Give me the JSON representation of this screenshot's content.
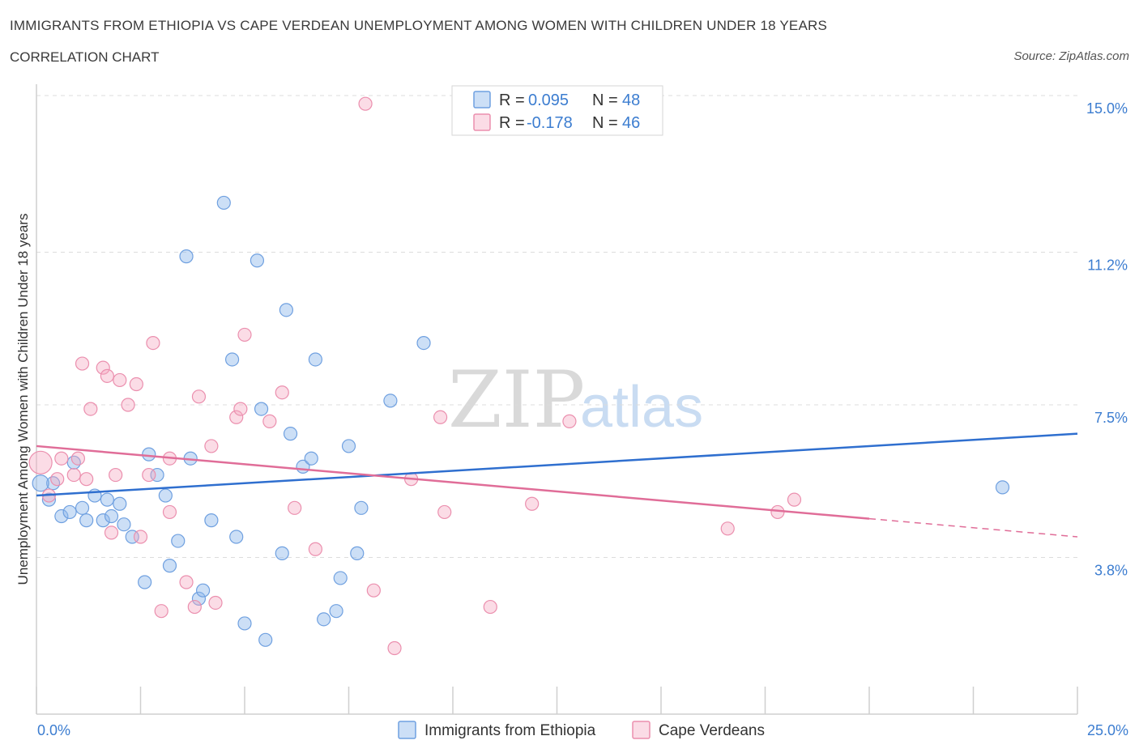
{
  "title": "IMMIGRANTS FROM ETHIOPIA VS CAPE VERDEAN UNEMPLOYMENT AMONG WOMEN WITH CHILDREN UNDER 18 YEARS",
  "subtitle": "CORRELATION CHART",
  "source": "Source: ZipAtlas.com",
  "watermark": {
    "zip": "ZIP",
    "atlas": "atlas"
  },
  "legend": {
    "r_label": "R =",
    "n_label": "N =",
    "rows": [
      {
        "r": "0.095",
        "n": "48",
        "color": "#8fb8ec"
      },
      {
        "r": "-0.178",
        "n": "46",
        "color": "#f4a7c0"
      }
    ]
  },
  "bottom_legend": [
    "Immigrants from Ethiopia",
    "Cape Verdeans"
  ],
  "chart_data": {
    "type": "scatter",
    "title": "",
    "xlabel": "",
    "ylabel": "Unemployment Among Women with Children Under 18 years",
    "xlim": [
      0,
      25
    ],
    "ylim": [
      0,
      15
    ],
    "x_tick_labels": [
      {
        "value": 0,
        "label": "0.0%"
      },
      {
        "value": 25,
        "label": "25.0%"
      }
    ],
    "y_tick_labels": [
      {
        "value": 3.8,
        "label": "3.8%"
      },
      {
        "value": 7.5,
        "label": "7.5%"
      },
      {
        "value": 11.2,
        "label": "11.2%"
      },
      {
        "value": 15.0,
        "label": "15.0%"
      }
    ],
    "grid": true,
    "legend_position": "top-center",
    "series": [
      {
        "name": "Immigrants from Ethiopia",
        "color": "#8fb8ec",
        "line_color": "#2f6fcf",
        "trend": [
          [
            0,
            5.3
          ],
          [
            25,
            6.8
          ]
        ],
        "trend_dashed_from": null,
        "points": [
          [
            0.3,
            5.2
          ],
          [
            0.4,
            5.6
          ],
          [
            0.6,
            4.8
          ],
          [
            0.8,
            4.9
          ],
          [
            0.9,
            6.1
          ],
          [
            1.1,
            5.0
          ],
          [
            1.2,
            4.7
          ],
          [
            1.4,
            5.3
          ],
          [
            1.6,
            4.7
          ],
          [
            1.7,
            5.2
          ],
          [
            1.8,
            4.8
          ],
          [
            2.0,
            5.1
          ],
          [
            2.1,
            4.6
          ],
          [
            2.3,
            4.3
          ],
          [
            2.6,
            3.2
          ],
          [
            2.7,
            6.3
          ],
          [
            2.9,
            5.8
          ],
          [
            3.1,
            5.3
          ],
          [
            3.2,
            3.6
          ],
          [
            3.4,
            4.2
          ],
          [
            3.6,
            11.1
          ],
          [
            3.7,
            6.2
          ],
          [
            3.9,
            2.8
          ],
          [
            4.0,
            3.0
          ],
          [
            4.2,
            4.7
          ],
          [
            4.5,
            12.4
          ],
          [
            4.7,
            8.6
          ],
          [
            4.8,
            4.3
          ],
          [
            5.0,
            2.2
          ],
          [
            5.3,
            11.0
          ],
          [
            5.4,
            7.4
          ],
          [
            5.5,
            1.8
          ],
          [
            5.9,
            3.9
          ],
          [
            6.0,
            9.8
          ],
          [
            6.1,
            6.8
          ],
          [
            6.4,
            6.0
          ],
          [
            6.6,
            6.2
          ],
          [
            6.7,
            8.6
          ],
          [
            6.9,
            2.3
          ],
          [
            7.2,
            2.5
          ],
          [
            7.3,
            3.3
          ],
          [
            7.5,
            6.5
          ],
          [
            7.7,
            3.9
          ],
          [
            7.8,
            5.0
          ],
          [
            8.5,
            7.6
          ],
          [
            9.3,
            9.0
          ],
          [
            23.2,
            5.5
          ],
          [
            0.1,
            5.6
          ]
        ]
      },
      {
        "name": "Cape Verdeans",
        "color": "#f4a7c0",
        "line_color": "#e06d98",
        "trend": [
          [
            0,
            6.5
          ],
          [
            25,
            4.3
          ]
        ],
        "trend_dashed_from": 20,
        "points": [
          [
            0.1,
            6.1
          ],
          [
            0.3,
            5.3
          ],
          [
            0.5,
            5.7
          ],
          [
            0.6,
            6.2
          ],
          [
            0.9,
            5.8
          ],
          [
            1.0,
            6.2
          ],
          [
            1.1,
            8.5
          ],
          [
            1.2,
            5.7
          ],
          [
            1.3,
            7.4
          ],
          [
            1.6,
            8.4
          ],
          [
            1.7,
            8.2
          ],
          [
            1.8,
            4.4
          ],
          [
            1.9,
            5.8
          ],
          [
            2.0,
            8.1
          ],
          [
            2.2,
            7.5
          ],
          [
            2.4,
            8.0
          ],
          [
            2.5,
            4.3
          ],
          [
            2.7,
            5.8
          ],
          [
            2.8,
            9.0
          ],
          [
            3.0,
            2.5
          ],
          [
            3.2,
            4.9
          ],
          [
            3.2,
            6.2
          ],
          [
            3.6,
            3.2
          ],
          [
            3.8,
            2.6
          ],
          [
            3.9,
            7.7
          ],
          [
            4.2,
            6.5
          ],
          [
            4.3,
            2.7
          ],
          [
            4.8,
            7.2
          ],
          [
            4.9,
            7.4
          ],
          [
            5.0,
            9.2
          ],
          [
            5.6,
            7.1
          ],
          [
            5.9,
            7.8
          ],
          [
            6.2,
            5.0
          ],
          [
            6.7,
            4.0
          ],
          [
            7.9,
            14.8
          ],
          [
            8.1,
            3.0
          ],
          [
            8.6,
            1.6
          ],
          [
            9.0,
            5.7
          ],
          [
            9.7,
            7.2
          ],
          [
            9.8,
            4.9
          ],
          [
            10.9,
            2.6
          ],
          [
            11.9,
            5.1
          ],
          [
            12.8,
            7.1
          ],
          [
            16.6,
            4.5
          ],
          [
            17.8,
            4.9
          ],
          [
            18.2,
            5.2
          ]
        ]
      }
    ]
  }
}
